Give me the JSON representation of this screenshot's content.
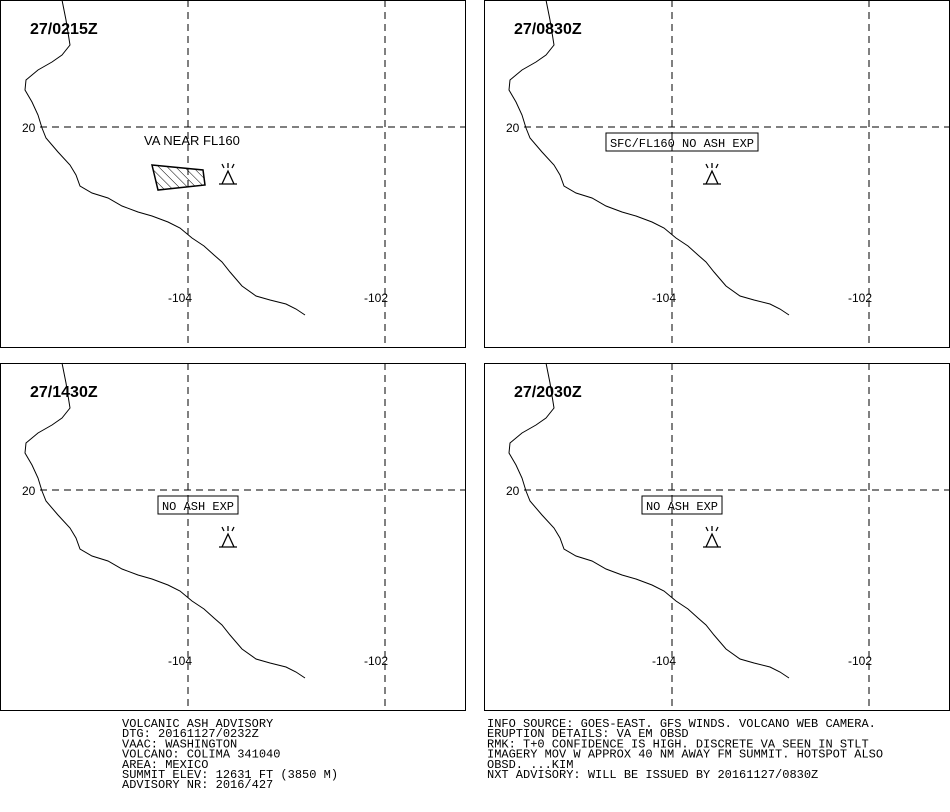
{
  "panels": [
    {
      "time": "27/0215Z",
      "lat_label": "20",
      "lon_labels": [
        "-104",
        "-102"
      ],
      "annotation": "VA NEAR FL160",
      "boxed": false,
      "ash_area": true
    },
    {
      "time": "27/0830Z",
      "lat_label": "20",
      "lon_labels": [
        "-104",
        "-102"
      ],
      "annotation": "SFC/FL160 NO ASH EXP",
      "boxed": true,
      "ash_area": false
    },
    {
      "time": "27/1430Z",
      "lat_label": "20",
      "lon_labels": [
        "-104",
        "-102"
      ],
      "annotation": "NO ASH EXP",
      "boxed": true,
      "ash_area": false
    },
    {
      "time": "27/2030Z",
      "lat_label": "20",
      "lon_labels": [
        "-104",
        "-102"
      ],
      "annotation": "NO ASH EXP",
      "boxed": true,
      "ash_area": false
    }
  ],
  "advisory": {
    "left": [
      "VOLCANIC ASH ADVISORY",
      "DTG: 20161127/0232Z",
      "VAAC: WASHINGTON",
      "VOLCANO: COLIMA 341040",
      "AREA: MEXICO",
      "SUMMIT ELEV: 12631 FT (3850 M)",
      "ADVISORY NR: 2016/427"
    ],
    "right": [
      "INFO SOURCE: GOES-EAST. GFS WINDS. VOLCANO WEB CAMERA.",
      "ERUPTION DETAILS: VA EM OBSD",
      "RMK: T+0 CONFIDENCE IS HIGH. DISCRETE VA SEEN IN STLT",
      "IMAGERY MOV W APPROX 40 NM AWAY FM SUMMIT. HOTSPOT ALSO",
      "OBSD. ...KIM",
      "NXT ADVISORY: WILL BE ISSUED BY 20161127/0830Z"
    ]
  }
}
